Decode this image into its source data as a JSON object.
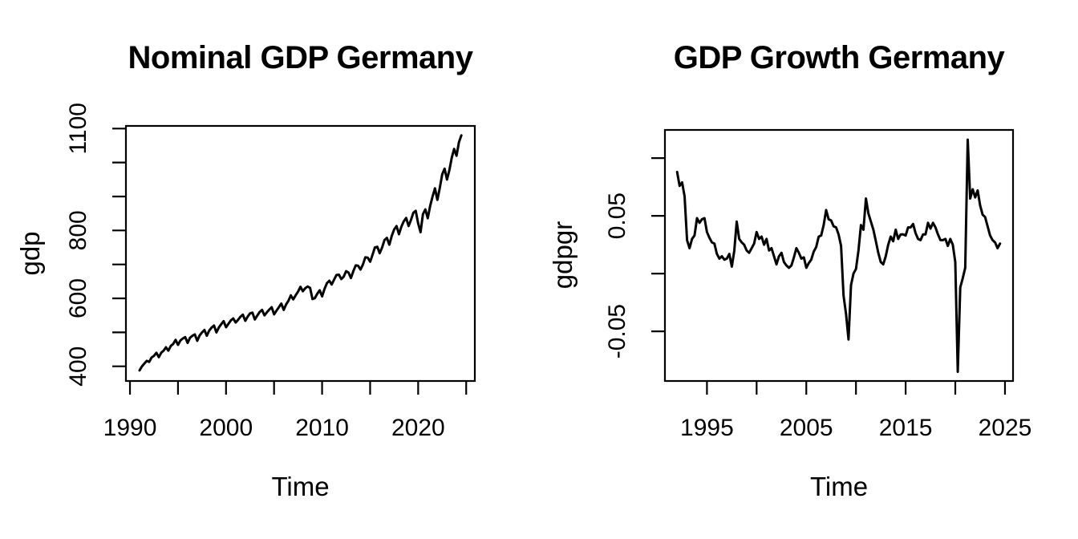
{
  "figure": {
    "background": "#ffffff",
    "foreground": "#000000",
    "line_color": "#000000"
  },
  "chart_data": [
    {
      "type": "line",
      "title": "Nominal GDP Germany",
      "xlabel": "Time",
      "ylabel": "gdp",
      "x_start": 1991.0,
      "x_step": 0.25,
      "values": [
        388,
        400,
        408,
        416,
        413,
        426,
        431,
        440,
        427,
        440,
        446,
        456,
        446,
        460,
        466,
        478,
        463,
        476,
        482,
        486,
        469,
        484,
        490,
        494,
        475,
        491,
        500,
        507,
        490,
        505,
        514,
        520,
        500,
        514,
        524,
        533,
        515,
        525,
        535,
        541,
        529,
        537,
        546,
        552,
        534,
        546,
        556,
        558,
        538,
        549,
        560,
        566,
        550,
        559,
        567,
        574,
        553,
        564,
        574,
        585,
        566,
        582,
        593,
        609,
        597,
        609,
        620,
        634,
        621,
        630,
        635,
        631,
        598,
        601,
        614,
        624,
        606,
        628,
        645,
        652,
        641,
        655,
        669,
        670,
        657,
        664,
        680,
        676,
        660,
        680,
        697,
        696,
        685,
        700,
        721,
        720,
        708,
        728,
        750,
        752,
        733,
        750,
        772,
        778,
        758,
        784,
        803,
        813,
        789,
        811,
        827,
        837,
        813,
        831,
        852,
        858,
        821,
        795,
        848,
        862,
        836,
        872,
        900,
        924,
        890,
        925,
        965,
        982,
        950,
        978,
        1015,
        1040,
        1020,
        1060,
        1080
      ],
      "xlim": [
        1989.58,
        2025.9
      ],
      "ylim": [
        356.8,
        1107.8
      ],
      "xticks": [
        {
          "v": 1990,
          "label": "1990"
        },
        {
          "v": 1995,
          "label": ""
        },
        {
          "v": 2000,
          "label": "2000"
        },
        {
          "v": 2005,
          "label": ""
        },
        {
          "v": 2010,
          "label": "2010"
        },
        {
          "v": 2015,
          "label": ""
        },
        {
          "v": 2020,
          "label": "2020"
        },
        {
          "v": 2025,
          "label": ""
        }
      ],
      "yticks": [
        {
          "v": 400,
          "label": "400"
        },
        {
          "v": 500,
          "label": ""
        },
        {
          "v": 600,
          "label": "600"
        },
        {
          "v": 700,
          "label": ""
        },
        {
          "v": 800,
          "label": "800"
        },
        {
          "v": 900,
          "label": ""
        },
        {
          "v": 1000,
          "label": ""
        },
        {
          "v": 1100,
          "label": "1100"
        }
      ]
    },
    {
      "type": "line",
      "title": "GDP Growth Germany",
      "xlabel": "Time",
      "ylabel": "gdpgr",
      "x_start": 1992.0,
      "x_step": 0.25,
      "values": [
        0.088,
        0.076,
        0.079,
        0.067,
        0.029,
        0.022,
        0.03,
        0.033,
        0.048,
        0.044,
        0.047,
        0.048,
        0.036,
        0.031,
        0.027,
        0.026,
        0.017,
        0.013,
        0.015,
        0.012,
        0.013,
        0.017,
        0.006,
        0.02,
        0.045,
        0.03,
        0.027,
        0.025,
        0.02,
        0.018,
        0.022,
        0.026,
        0.036,
        0.03,
        0.032,
        0.025,
        0.03,
        0.02,
        0.022,
        0.015,
        0.008,
        0.015,
        0.018,
        0.01,
        0.007,
        0.005,
        0.007,
        0.014,
        0.022,
        0.018,
        0.013,
        0.014,
        0.005,
        0.009,
        0.012,
        0.019,
        0.023,
        0.032,
        0.033,
        0.042,
        0.055,
        0.047,
        0.046,
        0.041,
        0.04,
        0.034,
        0.024,
        -0.019,
        -0.035,
        -0.057,
        -0.01,
        0.0,
        0.004,
        0.02,
        0.042,
        0.038,
        0.065,
        0.052,
        0.045,
        0.038,
        0.028,
        0.018,
        0.01,
        0.008,
        0.015,
        0.025,
        0.032,
        0.028,
        0.038,
        0.03,
        0.034,
        0.034,
        0.033,
        0.04,
        0.04,
        0.043,
        0.035,
        0.03,
        0.029,
        0.034,
        0.034,
        0.044,
        0.039,
        0.044,
        0.04,
        0.034,
        0.029,
        0.029,
        0.03,
        0.024,
        0.03,
        0.025,
        0.01,
        -0.085,
        -0.012,
        -0.004,
        0.005,
        0.116,
        0.065,
        0.073,
        0.066,
        0.072,
        0.059,
        0.051,
        0.049,
        0.041,
        0.033,
        0.029,
        0.027,
        0.022,
        0.026
      ],
      "xlim": [
        1990.77,
        2025.81
      ],
      "ylim": [
        -0.093,
        0.1244
      ],
      "xticks": [
        {
          "v": 1995,
          "label": "1995"
        },
        {
          "v": 2000,
          "label": ""
        },
        {
          "v": 2005,
          "label": "2005"
        },
        {
          "v": 2010,
          "label": ""
        },
        {
          "v": 2015,
          "label": "2015"
        },
        {
          "v": 2020,
          "label": ""
        },
        {
          "v": 2025,
          "label": "2025"
        }
      ],
      "yticks": [
        {
          "v": -0.05,
          "label": "-0.05"
        },
        {
          "v": 0,
          "label": ""
        },
        {
          "v": 0.05,
          "label": "0.05"
        },
        {
          "v": 0.1,
          "label": ""
        }
      ]
    }
  ]
}
